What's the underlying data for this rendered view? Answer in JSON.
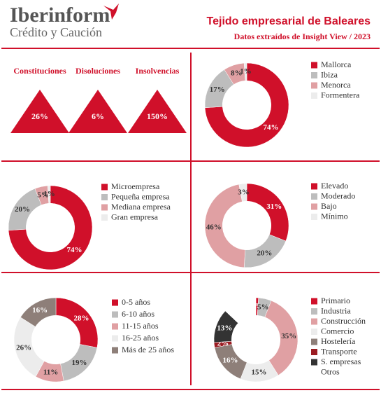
{
  "header": {
    "logo": "Iberinform",
    "logo_sub": "Crédito y Caución",
    "title": "Tejido empresarial de Baleares",
    "subtitle": "Datos extraídos de Insight View / 2023"
  },
  "chart_data": [
    {
      "type": "indicator",
      "categories": [
        "Constituciones",
        "Disoluciones",
        "Insolvencias"
      ],
      "values": [
        26,
        6,
        150
      ],
      "value_labels": [
        "26%",
        "6%",
        "150%"
      ],
      "color": "#d0102a"
    },
    {
      "type": "donut",
      "categories": [
        "Mallorca",
        "Ibiza",
        "Menorca",
        "Formentera"
      ],
      "values": [
        74,
        17,
        8,
        1
      ],
      "value_labels": [
        "74%",
        "17%",
        "8%",
        "1%"
      ],
      "colors": [
        "#d0102a",
        "#bdbdbd",
        "#e0a0a3",
        "#ececec"
      ]
    },
    {
      "type": "donut",
      "categories": [
        "Microempresa",
        "Pequeña empresa",
        "Mediana empresa",
        "Gran empresa"
      ],
      "values": [
        74,
        20,
        5,
        1
      ],
      "value_labels": [
        "74%",
        "20%",
        "5%",
        "1%"
      ],
      "colors": [
        "#d0102a",
        "#bdbdbd",
        "#e0a0a3",
        "#ececec"
      ]
    },
    {
      "type": "donut",
      "categories": [
        "Elevado",
        "Moderado",
        "Bajo",
        "Mínimo"
      ],
      "values": [
        31,
        20,
        46,
        3
      ],
      "value_labels": [
        "31%",
        "20%",
        "46%",
        "3%"
      ],
      "colors": [
        "#d0102a",
        "#bdbdbd",
        "#e0a0a3",
        "#ececec"
      ]
    },
    {
      "type": "donut",
      "categories": [
        "0-5 años",
        "6-10 años",
        "11-15 años",
        "16-25 años",
        "Más de 25 años"
      ],
      "values": [
        28,
        19,
        11,
        26,
        16
      ],
      "value_labels": [
        "28%",
        "19%",
        "11%",
        "26%",
        "16%"
      ],
      "colors": [
        "#d0102a",
        "#bdbdbd",
        "#e0a0a3",
        "#ececec",
        "#8e7f79"
      ]
    },
    {
      "type": "donut",
      "categories": [
        "Primario",
        "Industria",
        "Construcción",
        "Comercio",
        "Hostelería",
        "Transporte",
        "S. empresas",
        "Otros"
      ],
      "values": [
        1,
        5,
        35,
        15,
        16,
        2,
        13,
        13
      ],
      "value_labels": [
        "1%",
        "5%",
        "35%",
        "15%",
        "16%",
        "2%",
        "13%",
        null
      ],
      "colors": [
        "#d0102a",
        "#bdbdbd",
        "#e0a0a3",
        "#ececec",
        "#8e7f79",
        "#9b1c22",
        "#333333",
        "#ffffff"
      ]
    }
  ]
}
